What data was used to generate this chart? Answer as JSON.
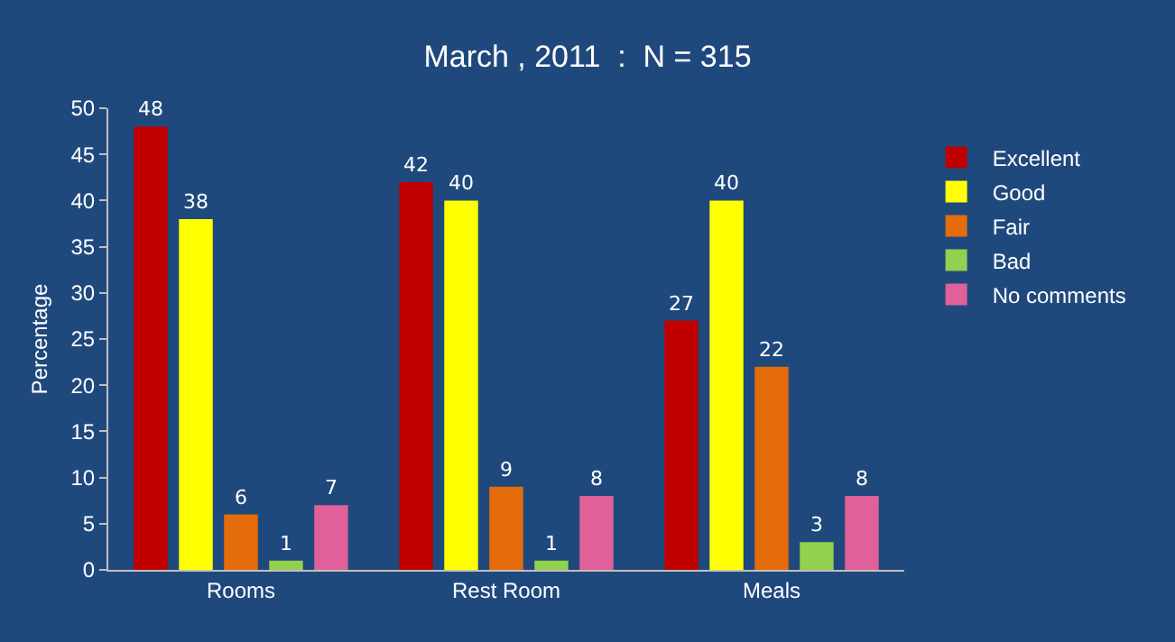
{
  "chart_data": {
    "type": "bar",
    "title": "March , 2011  :  N = 315",
    "ylabel": "Percentage",
    "categories": [
      "Rooms",
      "Rest Room",
      "Meals"
    ],
    "series": [
      {
        "name": "Excellent",
        "color": "#c00000",
        "values": [
          48,
          42,
          27
        ]
      },
      {
        "name": "Good",
        "color": "#ffff00",
        "values": [
          38,
          40,
          40
        ]
      },
      {
        "name": "Fair",
        "color": "#e46c0a",
        "values": [
          6,
          9,
          22
        ]
      },
      {
        "name": "Bad",
        "color": "#92d050",
        "values": [
          1,
          1,
          3
        ]
      },
      {
        "name": "No comments",
        "color": "#e0609a",
        "values": [
          7,
          8,
          8
        ]
      }
    ],
    "ylim": [
      0,
      50
    ],
    "yticks": [
      0,
      5,
      10,
      15,
      20,
      25,
      30,
      35,
      40,
      45,
      50
    ],
    "grid": false,
    "legend": "right",
    "data_labels": true
  }
}
